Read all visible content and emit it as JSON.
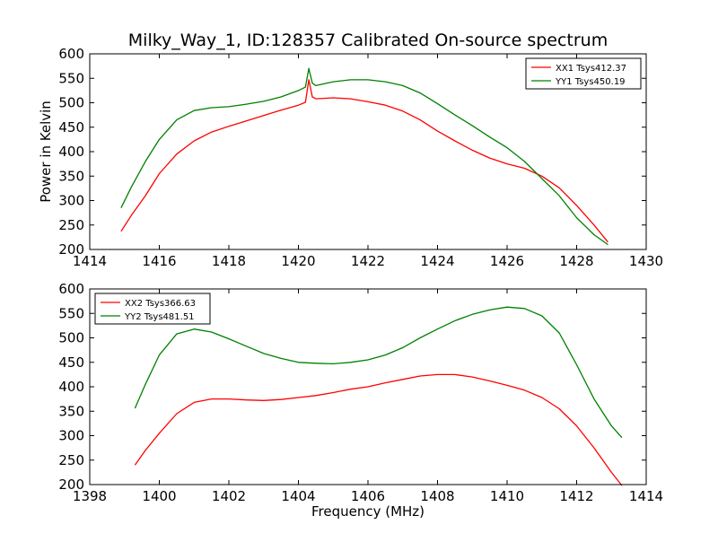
{
  "figure": {
    "title": "Milky_Way_1, ID:128357 Calibrated On-source spectrum",
    "ylabel": "Power in Kelvin",
    "xlabel": "Frequency (MHz)"
  },
  "chart_data": [
    {
      "type": "line",
      "title": "",
      "ylabel": "Power in Kelvin",
      "xlabel": "",
      "xlim": [
        1414,
        1430
      ],
      "ylim": [
        200,
        600
      ],
      "xticks": [
        1414,
        1416,
        1418,
        1420,
        1422,
        1424,
        1426,
        1428,
        1430
      ],
      "yticks": [
        200,
        250,
        300,
        350,
        400,
        450,
        500,
        550,
        600
      ],
      "legend_position": "top-right",
      "series": [
        {
          "name": "XX1 Tsys412.37",
          "color": "#ff0000",
          "x": [
            1414.9,
            1415.2,
            1415.6,
            1416.0,
            1416.5,
            1417.0,
            1417.5,
            1418.0,
            1418.5,
            1419.0,
            1419.5,
            1420.0,
            1420.2,
            1420.3,
            1420.4,
            1420.5,
            1421.0,
            1421.5,
            1422.0,
            1422.5,
            1423.0,
            1423.5,
            1424.0,
            1424.5,
            1425.0,
            1425.5,
            1426.0,
            1426.5,
            1427.0,
            1427.5,
            1428.0,
            1428.5,
            1428.9
          ],
          "y": [
            237,
            270,
            310,
            355,
            395,
            422,
            440,
            452,
            463,
            474,
            485,
            495,
            501,
            547,
            512,
            508,
            510,
            508,
            502,
            495,
            483,
            465,
            442,
            422,
            403,
            387,
            375,
            366,
            350,
            326,
            290,
            250,
            215
          ]
        },
        {
          "name": "YY1 Tsys450.19",
          "color": "#008000",
          "x": [
            1414.9,
            1415.2,
            1415.6,
            1416.0,
            1416.5,
            1417.0,
            1417.5,
            1418.0,
            1418.5,
            1419.0,
            1419.5,
            1420.0,
            1420.2,
            1420.3,
            1420.4,
            1420.5,
            1421.0,
            1421.5,
            1422.0,
            1422.5,
            1423.0,
            1423.5,
            1424.0,
            1424.5,
            1425.0,
            1425.5,
            1426.0,
            1426.5,
            1427.0,
            1427.5,
            1428.0,
            1428.5,
            1428.9
          ],
          "y": [
            285,
            328,
            380,
            425,
            465,
            484,
            490,
            492,
            497,
            503,
            512,
            525,
            532,
            570,
            540,
            535,
            543,
            547,
            547,
            543,
            535,
            520,
            498,
            475,
            453,
            430,
            408,
            380,
            345,
            310,
            265,
            230,
            210
          ]
        }
      ]
    },
    {
      "type": "line",
      "title": "",
      "ylabel": "",
      "xlabel": "Frequency (MHz)",
      "xlim": [
        1398,
        1414
      ],
      "ylim": [
        200,
        600
      ],
      "xticks": [
        1398,
        1400,
        1402,
        1404,
        1406,
        1408,
        1410,
        1412,
        1414
      ],
      "yticks": [
        200,
        250,
        300,
        350,
        400,
        450,
        500,
        550,
        600
      ],
      "legend_position": "top-left",
      "series": [
        {
          "name": "XX2 Tsys366.63",
          "color": "#ff0000",
          "x": [
            1399.3,
            1399.6,
            1400.0,
            1400.5,
            1401.0,
            1401.5,
            1402.0,
            1402.5,
            1403.0,
            1403.5,
            1404.0,
            1404.5,
            1405.0,
            1405.5,
            1406.0,
            1406.5,
            1407.0,
            1407.5,
            1408.0,
            1408.5,
            1409.0,
            1409.5,
            1410.0,
            1410.5,
            1411.0,
            1411.5,
            1412.0,
            1412.5,
            1413.0,
            1413.3
          ],
          "y": [
            240,
            270,
            305,
            345,
            368,
            375,
            375,
            373,
            372,
            374,
            378,
            382,
            388,
            395,
            400,
            408,
            415,
            422,
            425,
            425,
            420,
            412,
            403,
            393,
            378,
            355,
            320,
            275,
            225,
            198
          ]
        },
        {
          "name": "YY2 Tsys481.51",
          "color": "#008000",
          "x": [
            1399.3,
            1399.6,
            1400.0,
            1400.5,
            1401.0,
            1401.5,
            1402.0,
            1402.5,
            1403.0,
            1403.5,
            1404.0,
            1404.5,
            1405.0,
            1405.5,
            1406.0,
            1406.5,
            1407.0,
            1407.5,
            1408.0,
            1408.5,
            1409.0,
            1409.5,
            1410.0,
            1410.5,
            1411.0,
            1411.5,
            1412.0,
            1412.5,
            1413.0,
            1413.3
          ],
          "y": [
            356,
            405,
            465,
            508,
            518,
            512,
            498,
            483,
            468,
            458,
            450,
            448,
            447,
            450,
            455,
            465,
            480,
            500,
            518,
            535,
            548,
            557,
            563,
            560,
            545,
            510,
            445,
            375,
            320,
            296
          ]
        }
      ]
    }
  ]
}
